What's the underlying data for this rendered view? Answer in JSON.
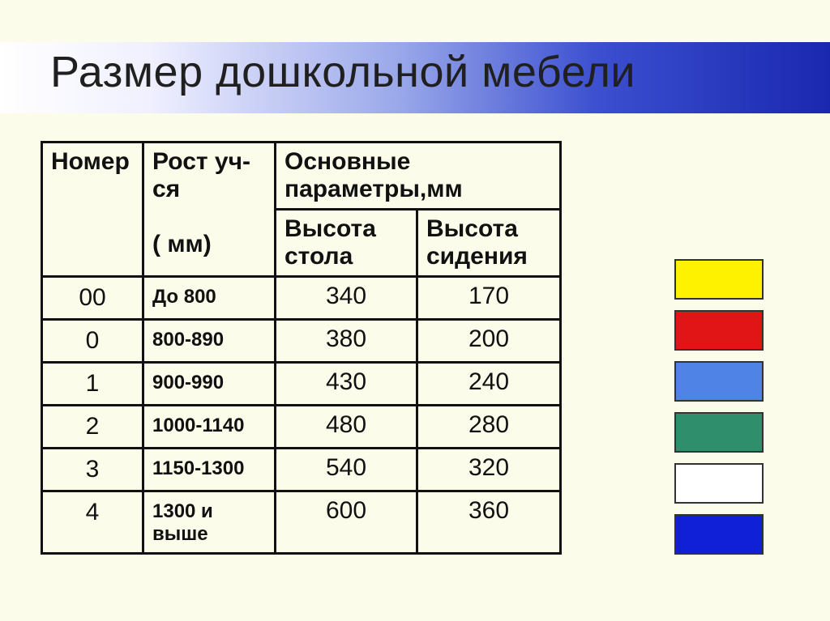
{
  "title": "Размер дошкольной мебели",
  "table": {
    "headers": {
      "number": "Номер",
      "height": "Рост уч-ся",
      "height_unit": "( мм)",
      "params": "Основные параметры,мм",
      "table_height": "Высота стола",
      "seat_height": "Высота сидения"
    },
    "rows": [
      {
        "number": "00",
        "height": "До 800",
        "table_h": "340",
        "seat_h": "170"
      },
      {
        "number": "0",
        "height": "800-890",
        "table_h": "380",
        "seat_h": "200"
      },
      {
        "number": "1",
        "height": "900-990",
        "table_h": "430",
        "seat_h": "240"
      },
      {
        "number": "2",
        "height": "1000-1140",
        "table_h": "480",
        "seat_h": "280"
      },
      {
        "number": "3",
        "height": "1150-1300",
        "table_h": "540",
        "seat_h": "320"
      },
      {
        "number": "4",
        "height": "1300 и выше",
        "table_h": "600",
        "seat_h": "360"
      }
    ]
  },
  "swatches": [
    {
      "name": "yellow",
      "color": "#fff200"
    },
    {
      "name": "red",
      "color": "#e11515"
    },
    {
      "name": "blue-light",
      "color": "#4f84e6"
    },
    {
      "name": "green",
      "color": "#2f8f6c"
    },
    {
      "name": "white",
      "color": "#ffffff"
    },
    {
      "name": "blue",
      "color": "#1020d6"
    }
  ],
  "colors": {
    "slide_bg": "#fbfce9",
    "border": "#111111",
    "title_text": "#202020"
  }
}
